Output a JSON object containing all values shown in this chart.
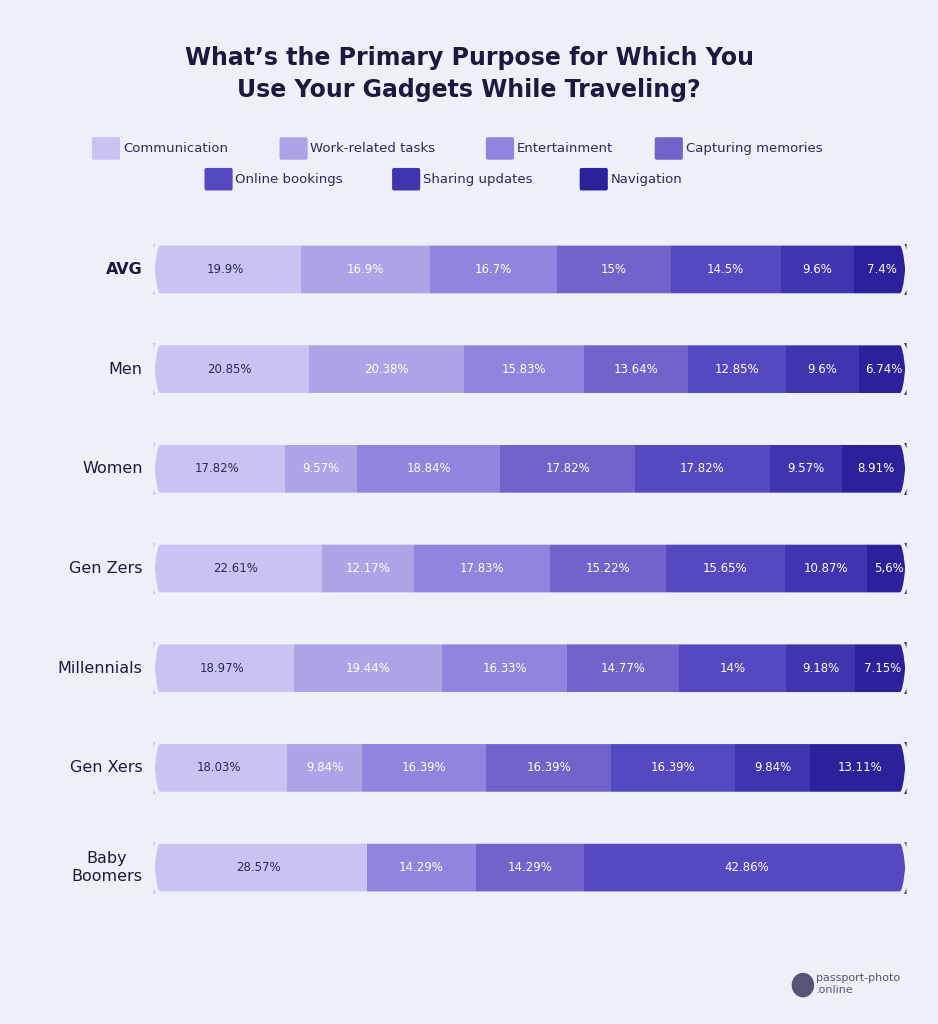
{
  "title": "What’s the Primary Purpose for Which You\nUse Your Gadgets While Traveling?",
  "background_color": "#edf0f8",
  "categories": [
    "AVG",
    "Men",
    "Women",
    "Gen Zers",
    "Millennials",
    "Gen Xers",
    "Baby\nBoomers"
  ],
  "category_bold": [
    true,
    false,
    false,
    false,
    false,
    false,
    false
  ],
  "segments": [
    "Communication",
    "Work-related tasks",
    "Entertainment",
    "Capturing memories",
    "Online bookings",
    "Sharing updates",
    "Navigation"
  ],
  "colors": [
    "#c9c2f2",
    "#ada4e8",
    "#8f85de",
    "#6e64cc",
    "#5449c0",
    "#3f35ae",
    "#2b219a"
  ],
  "data": {
    "AVG": [
      19.9,
      16.9,
      16.7,
      15.0,
      14.5,
      9.6,
      7.4
    ],
    "Men": [
      20.85,
      20.38,
      15.83,
      13.64,
      12.85,
      9.6,
      6.74
    ],
    "Women": [
      17.82,
      9.57,
      18.84,
      17.82,
      17.82,
      9.57,
      8.91
    ],
    "Gen Zers": [
      22.61,
      12.17,
      17.83,
      15.22,
      15.65,
      10.87,
      5.6
    ],
    "Millennials": [
      18.97,
      19.44,
      16.33,
      14.77,
      14.0,
      9.18,
      7.15
    ],
    "Gen Xers": [
      18.03,
      9.84,
      16.39,
      16.39,
      16.39,
      9.84,
      13.11
    ],
    "Baby\nBoomers": [
      28.57,
      0.0,
      14.29,
      14.29,
      42.86,
      0.0,
      0.0
    ]
  },
  "labels": {
    "AVG": [
      "19.9%",
      "16.9%",
      "16.7%",
      "15%",
      "14.5%",
      "9.6%",
      "7.4%"
    ],
    "Men": [
      "20.85%",
      "20.38%",
      "15.83%",
      "13.64%",
      "12.85%",
      "9.6%",
      "6.74%"
    ],
    "Women": [
      "17.82%",
      "9.57%",
      "18.84%",
      "17.82%",
      "17.82%",
      "9.57%",
      "8.91%"
    ],
    "Gen Zers": [
      "22.61%",
      "12.17%",
      "17.83%",
      "15.22%",
      "15.65%",
      "10.87%",
      "5,6%"
    ],
    "Millennials": [
      "18.97%",
      "19.44%",
      "16.33%",
      "14.77%",
      "14%",
      "9.18%",
      "7.15%"
    ],
    "Gen Xers": [
      "18.03%",
      "9.84%",
      "16.39%",
      "16.39%",
      "16.39%",
      "9.84%",
      "13.11%"
    ],
    "Baby\nBoomers": [
      "28.57%",
      "",
      "14.29%",
      "14.29%",
      "42.86%",
      "",
      ""
    ]
  },
  "bar_height": 0.52,
  "min_label_pct": 5.5,
  "logo_text": "passport-photo\n.online"
}
